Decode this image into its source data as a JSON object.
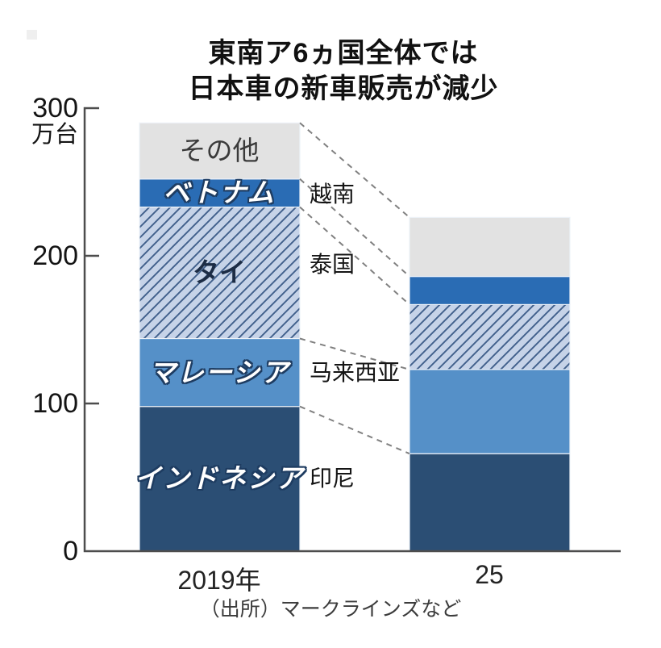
{
  "chart_data": {
    "type": "bar",
    "variant": "stacked",
    "title_line1": "東南ア6ヵ国全体では",
    "title_line2": "日本車の新車販売が減少",
    "y_unit": "万台",
    "ylim": [
      0,
      300
    ],
    "yticks": [
      "0",
      "100",
      "200",
      "300"
    ],
    "grid": false,
    "legend_position": "in-bar",
    "categories": [
      "2019年",
      "25"
    ],
    "series": [
      {
        "name": "インドネシア",
        "alt_name": "印尼",
        "values": [
          98,
          66
        ],
        "color": "#2b4e74",
        "hatch": false,
        "label_style": "white-outline"
      },
      {
        "name": "マレーシア",
        "alt_name": "马来西亚",
        "values": [
          46,
          57
        ],
        "color": "#5590c8",
        "hatch": false,
        "label_style": "white-outline"
      },
      {
        "name": "タイ",
        "alt_name": "泰国",
        "values": [
          89,
          44
        ],
        "color": "#c6d3e8",
        "hatch": true,
        "hatch_color": "#41608c",
        "label_style": "dark-navy"
      },
      {
        "name": "ベトナム",
        "alt_name": "越南",
        "values": [
          19,
          19
        ],
        "color": "#2a6cb4",
        "hatch": false,
        "label_style": "white-outline"
      },
      {
        "name": "その他",
        "alt_name": "",
        "values": [
          38,
          40
        ],
        "color": "#e2e2e2",
        "hatch": false,
        "label_style": "dark-gray"
      }
    ],
    "totals": [
      290,
      226
    ],
    "source": "（出所）マークラインズなど",
    "colors": {
      "axis": "#4d4d4d",
      "leader_line": "#808080",
      "segment_border": "#edf2f8",
      "label_outline": "#1e3c61"
    }
  }
}
